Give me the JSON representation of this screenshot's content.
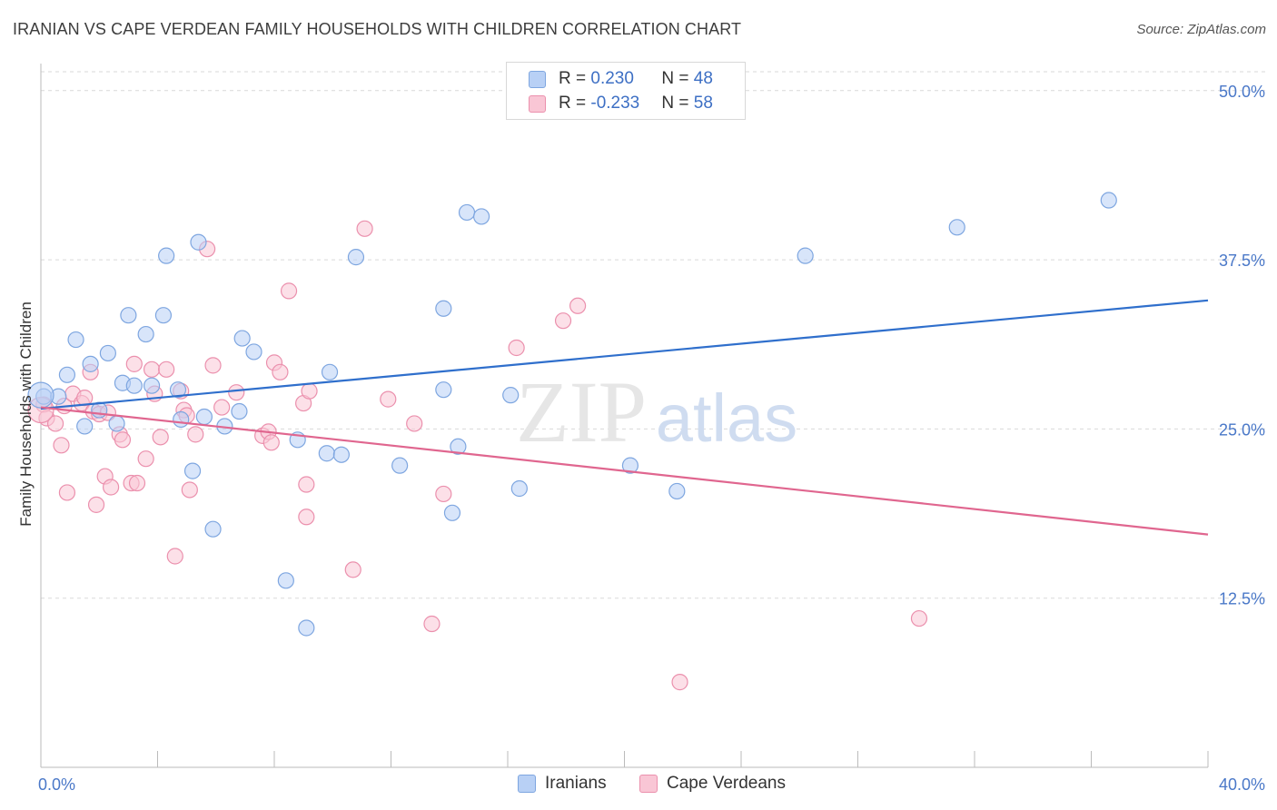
{
  "header": {
    "title": "IRANIAN VS CAPE VERDEAN FAMILY HOUSEHOLDS WITH CHILDREN CORRELATION CHART",
    "source": "Source: ZipAtlas.com"
  },
  "legend": {
    "rows": [
      {
        "r_label": "R = ",
        "r_value": "0.230",
        "n_label": "N = ",
        "n_value": "48"
      },
      {
        "r_label": "R = ",
        "r_value": "-0.233",
        "n_label": "N = ",
        "n_value": "58"
      }
    ]
  },
  "watermark": {
    "zip": "ZIP",
    "atlas": "atlas"
  },
  "colors": {
    "iranians_fill": "#b8d0f5",
    "iranians_stroke": "#7ea6e0",
    "iranians_line": "#2f6fcc",
    "cape_fill": "#f9c6d5",
    "cape_stroke": "#eb90ad",
    "cape_line": "#e0668f"
  },
  "chart_data": {
    "type": "scatter",
    "title": "IRANIAN VS CAPE VERDEAN FAMILY HOUSEHOLDS WITH CHILDREN CORRELATION CHART",
    "xlabel": "",
    "ylabel": "Family Households with Children",
    "xlim": [
      0,
      40
    ],
    "ylim": [
      0,
      52
    ],
    "x_tick_labels": [
      "0.0%",
      "40.0%"
    ],
    "y_ticks": [
      12.5,
      25.0,
      37.5,
      50.0
    ],
    "y_tick_labels": [
      "12.5%",
      "25.0%",
      "37.5%",
      "50.0%"
    ],
    "legend_position": "top-center",
    "series": [
      {
        "name": "Iranians",
        "r": 0.23,
        "n": 48,
        "trend": {
          "x": [
            0,
            40
          ],
          "y": [
            26.5,
            34.5
          ]
        },
        "points": [
          [
            0.1,
            27.4
          ],
          [
            0.6,
            27.4
          ],
          [
            0.9,
            29.0
          ],
          [
            1.2,
            31.6
          ],
          [
            1.5,
            25.2
          ],
          [
            1.7,
            29.8
          ],
          [
            2.0,
            26.4
          ],
          [
            2.3,
            30.6
          ],
          [
            2.6,
            25.4
          ],
          [
            2.8,
            28.4
          ],
          [
            3.0,
            33.4
          ],
          [
            3.2,
            28.2
          ],
          [
            3.6,
            32.0
          ],
          [
            3.8,
            28.2
          ],
          [
            4.2,
            33.4
          ],
          [
            4.3,
            37.8
          ],
          [
            4.7,
            27.9
          ],
          [
            4.8,
            25.7
          ],
          [
            5.2,
            21.9
          ],
          [
            5.4,
            38.8
          ],
          [
            5.6,
            25.9
          ],
          [
            5.9,
            17.6
          ],
          [
            6.3,
            25.2
          ],
          [
            6.8,
            26.3
          ],
          [
            6.9,
            31.7
          ],
          [
            7.3,
            30.7
          ],
          [
            8.4,
            13.8
          ],
          [
            8.8,
            24.2
          ],
          [
            9.1,
            10.3
          ],
          [
            9.8,
            23.2
          ],
          [
            9.9,
            29.2
          ],
          [
            10.3,
            23.1
          ],
          [
            10.8,
            37.7
          ],
          [
            12.3,
            22.3
          ],
          [
            13.8,
            33.9
          ],
          [
            13.8,
            27.9
          ],
          [
            14.1,
            18.8
          ],
          [
            14.3,
            23.7
          ],
          [
            14.6,
            41.0
          ],
          [
            15.1,
            40.7
          ],
          [
            16.1,
            27.5
          ],
          [
            16.4,
            20.6
          ],
          [
            20.2,
            22.3
          ],
          [
            21.8,
            20.4
          ],
          [
            26.2,
            37.8
          ],
          [
            31.4,
            39.9
          ],
          [
            36.6,
            41.9
          ],
          [
            0.0,
            27.5
          ]
        ]
      },
      {
        "name": "Cape Verdeans",
        "r": -0.233,
        "n": 58,
        "trend": {
          "x": [
            0,
            40
          ],
          "y": [
            26.6,
            17.2
          ]
        },
        "points": [
          [
            0.1,
            26.8
          ],
          [
            0.2,
            25.8
          ],
          [
            0.5,
            25.4
          ],
          [
            0.7,
            23.8
          ],
          [
            0.8,
            26.7
          ],
          [
            0.9,
            20.3
          ],
          [
            1.1,
            27.6
          ],
          [
            1.4,
            26.9
          ],
          [
            1.5,
            27.3
          ],
          [
            1.7,
            29.2
          ],
          [
            1.8,
            26.3
          ],
          [
            1.9,
            19.4
          ],
          [
            2.0,
            26.1
          ],
          [
            2.2,
            21.5
          ],
          [
            2.3,
            26.2
          ],
          [
            2.4,
            20.7
          ],
          [
            2.7,
            24.6
          ],
          [
            2.8,
            24.2
          ],
          [
            3.1,
            21.0
          ],
          [
            3.2,
            29.8
          ],
          [
            3.3,
            21.0
          ],
          [
            3.6,
            22.8
          ],
          [
            3.8,
            29.4
          ],
          [
            3.9,
            27.6
          ],
          [
            4.1,
            24.4
          ],
          [
            4.3,
            29.4
          ],
          [
            4.6,
            15.6
          ],
          [
            4.8,
            27.8
          ],
          [
            4.9,
            26.4
          ],
          [
            5.0,
            26.0
          ],
          [
            5.1,
            20.5
          ],
          [
            5.3,
            24.6
          ],
          [
            5.7,
            38.3
          ],
          [
            5.9,
            29.7
          ],
          [
            6.2,
            26.6
          ],
          [
            6.7,
            27.7
          ],
          [
            7.6,
            24.5
          ],
          [
            7.8,
            24.8
          ],
          [
            7.9,
            24.0
          ],
          [
            8.0,
            29.9
          ],
          [
            8.2,
            29.2
          ],
          [
            8.5,
            35.2
          ],
          [
            9.0,
            26.9
          ],
          [
            9.1,
            18.5
          ],
          [
            9.1,
            20.9
          ],
          [
            9.2,
            27.8
          ],
          [
            10.7,
            14.6
          ],
          [
            11.1,
            39.8
          ],
          [
            11.9,
            27.2
          ],
          [
            12.8,
            25.4
          ],
          [
            13.4,
            10.6
          ],
          [
            13.8,
            20.2
          ],
          [
            16.3,
            31.0
          ],
          [
            17.9,
            33.0
          ],
          [
            18.4,
            34.1
          ],
          [
            21.9,
            6.3
          ],
          [
            30.1,
            11.0
          ],
          [
            0.0,
            26.4
          ]
        ]
      }
    ]
  },
  "bottom_legend": {
    "items": [
      "Iranians",
      "Cape Verdeans"
    ]
  }
}
